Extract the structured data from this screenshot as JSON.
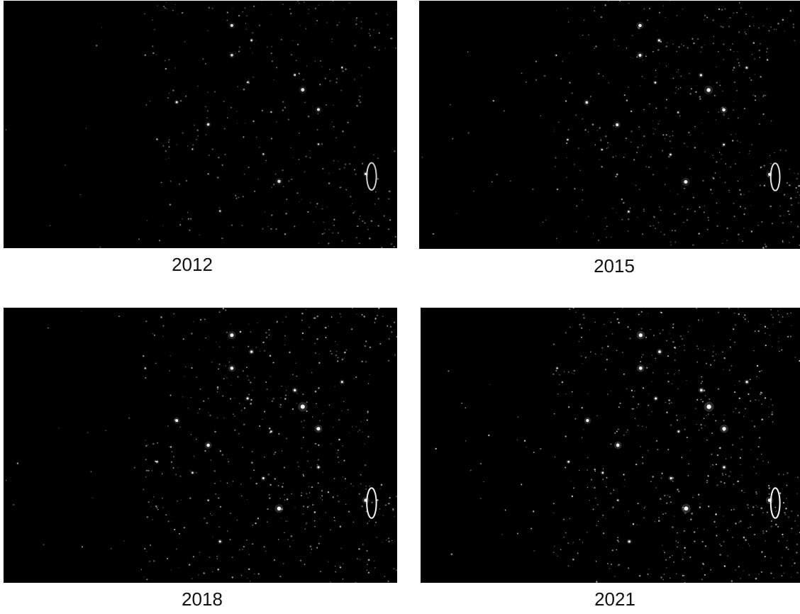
{
  "figure": {
    "panels": [
      {
        "year": "2012",
        "brightness": 0.55
      },
      {
        "year": "2015",
        "brightness": 0.75
      },
      {
        "year": "2018",
        "brightness": 0.9
      },
      {
        "year": "2021",
        "brightness": 1.0
      }
    ],
    "colors": {
      "background": "#ffffff",
      "map_background": "#000000",
      "lights": "#ffffff",
      "label_text": "#111111"
    }
  }
}
